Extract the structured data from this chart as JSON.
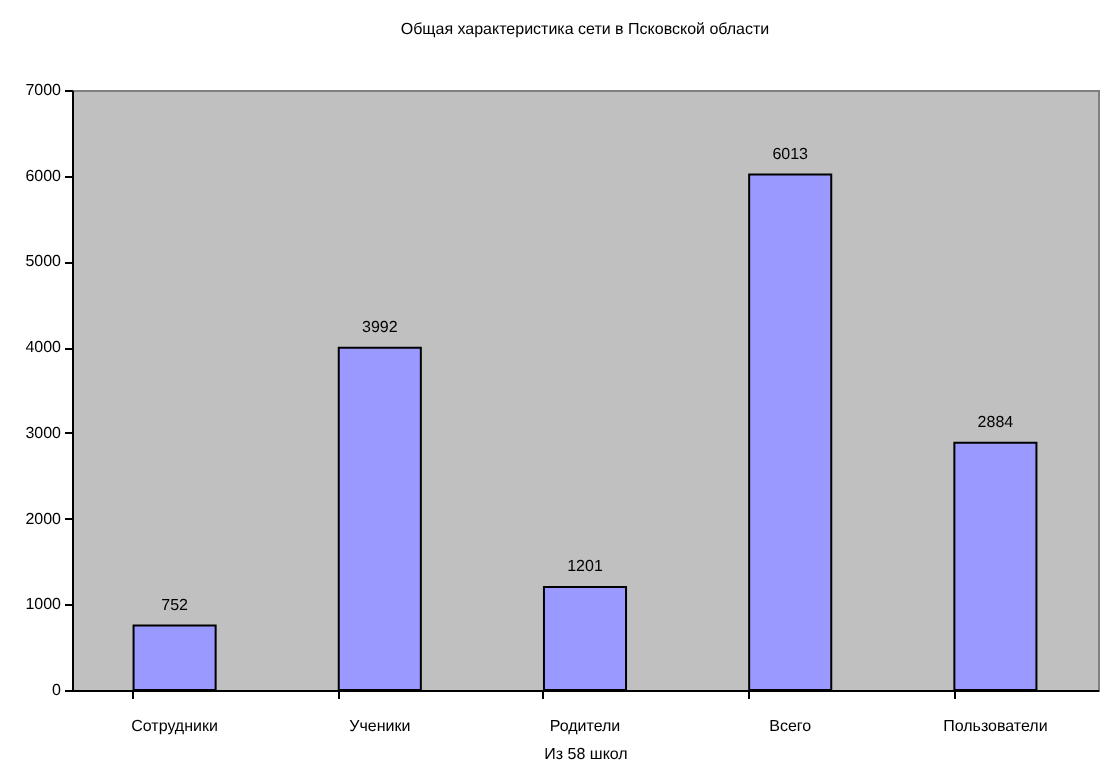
{
  "chart_data": {
    "type": "bar",
    "title": "Общая характеристика сети в Псковской области",
    "xlabel": "Из 58 школ",
    "categories": [
      "Сотрудники",
      "Ученики",
      "Родители",
      "Всего",
      "Пользователи"
    ],
    "values": [
      752,
      3992,
      1201,
      6013,
      2884
    ],
    "color": "#9999ff",
    "ylim": [
      0,
      7000
    ],
    "yticks": [
      0,
      1000,
      2000,
      3000,
      4000,
      5000,
      6000,
      7000
    ],
    "data_labels": true
  }
}
